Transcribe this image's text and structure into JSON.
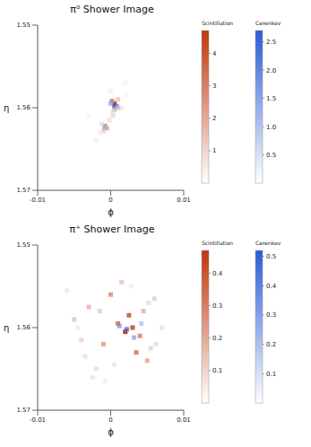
{
  "chart_data": [
    {
      "type": "heatmap",
      "title": "π⁰ Shower Image",
      "x_label": "ϕ",
      "y_label": "η",
      "xlim": [
        -0.01,
        0.01
      ],
      "xticks": [
        -0.01,
        0,
        0.01
      ],
      "ylim": [
        1.55,
        1.57
      ],
      "yticks": [
        1.55,
        1.56,
        1.57
      ],
      "scintillation": {
        "title": "Scintillation",
        "color": "#c0360c",
        "range": [
          0,
          4.7
        ],
        "ticks": [
          1,
          2,
          3,
          4
        ],
        "x": [
          0.0005,
          0.0008,
          0.0002,
          0.0005,
          0.001,
          -0.0008,
          -0.0005,
          -0.001,
          0.0003,
          -0.0002,
          0.0015,
          -0.0015,
          0.0,
          0.002
        ],
        "y": [
          1.5595,
          1.5598,
          1.5592,
          1.5602,
          1.559,
          1.5622,
          1.5625,
          1.5628,
          1.561,
          1.5615,
          1.56,
          1.563,
          1.558,
          1.5585
        ],
        "values": [
          4.5,
          3.2,
          2.8,
          2.0,
          1.2,
          2.5,
          1.6,
          1.0,
          0.8,
          0.6,
          0.5,
          0.4,
          0.3,
          0.2
        ]
      },
      "cerenkov": {
        "title": "Cerenkov",
        "color": "#2a5bd7",
        "range": [
          0,
          2.7
        ],
        "ticks": [
          0.5,
          {
            "value": 1,
            "label": "1.0"
          },
          1.5,
          {
            "value": 2,
            "label": "2.0"
          },
          2.5
        ],
        "x": [
          0.0005,
          0.0,
          0.001,
          -0.0008,
          -0.0012,
          0.0003,
          -0.002,
          0.002,
          -0.003
        ],
        "y": [
          1.5597,
          1.5595,
          1.56,
          1.5624,
          1.562,
          1.5605,
          1.564,
          1.557,
          1.561
        ],
        "values": [
          2.6,
          1.5,
          1.0,
          1.4,
          0.6,
          0.5,
          0.3,
          0.2,
          0.2
        ]
      }
    },
    {
      "type": "heatmap",
      "title": "π⁺ Shower Image",
      "x_label": "ϕ",
      "y_label": "η",
      "xlim": [
        -0.01,
        0.01
      ],
      "xticks": [
        -0.01,
        0,
        0.01
      ],
      "ylim": [
        1.55,
        1.57
      ],
      "yticks": [
        1.55,
        1.56,
        1.57
      ],
      "scintillation": {
        "title": "Scintillation",
        "color": "#c0360c",
        "range": [
          0,
          0.47
        ],
        "ticks": [
          0.1,
          0.2,
          0.3,
          0.4
        ],
        "x": [
          0.002,
          0.003,
          0.001,
          0.004,
          0.0025,
          -0.001,
          -0.003,
          -0.005,
          0.005,
          0.006,
          -0.002,
          0.0,
          0.0035,
          -0.004,
          0.007,
          -0.006,
          0.0015,
          0.0045,
          -0.0025,
          0.0055
        ],
        "y": [
          1.5605,
          1.56,
          1.5595,
          1.561,
          1.5585,
          1.562,
          1.5575,
          1.559,
          1.564,
          1.5565,
          1.565,
          1.556,
          1.563,
          1.5615,
          1.56,
          1.5555,
          1.5545,
          1.558,
          1.566,
          1.5625
        ],
        "values": [
          0.45,
          0.38,
          0.3,
          0.25,
          0.35,
          0.2,
          0.15,
          0.12,
          0.18,
          0.1,
          0.08,
          0.22,
          0.28,
          0.1,
          0.07,
          0.05,
          0.12,
          0.16,
          0.06,
          0.09
        ]
      },
      "cerenkov": {
        "title": "Cerenkov",
        "color": "#2a5bd7",
        "range": [
          0,
          0.52
        ],
        "ticks": [
          0.1,
          0.2,
          0.3,
          0.4,
          0.5
        ],
        "x": [
          0.0022,
          0.0012,
          0.0032,
          -0.0015,
          0.0042,
          -0.0035,
          0.0052,
          0.0005,
          -0.0045,
          0.0062,
          0.0028,
          -0.0008
        ],
        "y": [
          1.5602,
          1.5598,
          1.5612,
          1.558,
          1.5595,
          1.5635,
          1.557,
          1.5645,
          1.56,
          1.562,
          1.555,
          1.5665
        ],
        "values": [
          0.5,
          0.35,
          0.3,
          0.15,
          0.2,
          0.1,
          0.12,
          0.08,
          0.07,
          0.1,
          0.06,
          0.05
        ]
      }
    }
  ]
}
